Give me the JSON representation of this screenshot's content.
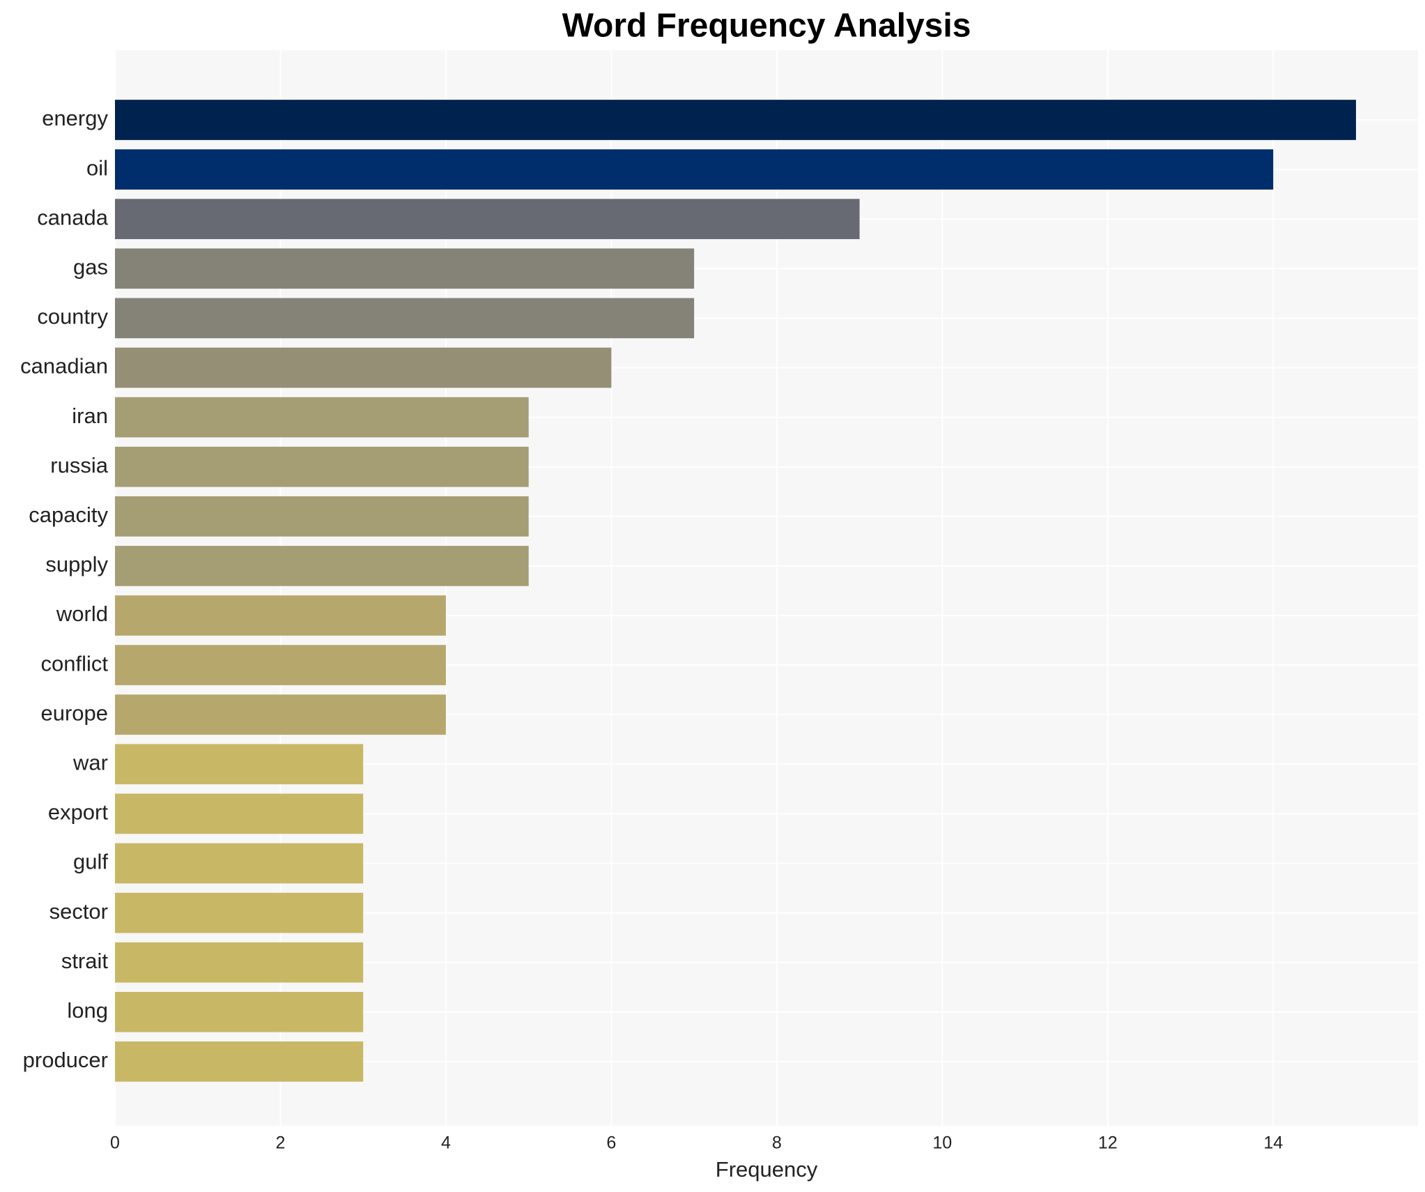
{
  "chart_data": {
    "type": "hbar",
    "title": "Word Frequency Analysis",
    "x_label": "Frequency",
    "categories": [
      "energy",
      "oil",
      "canada",
      "gas",
      "country",
      "canadian",
      "iran",
      "russia",
      "capacity",
      "supply",
      "world",
      "conflict",
      "europe",
      "war",
      "export",
      "gulf",
      "sector",
      "strait",
      "long",
      "producer"
    ],
    "values": [
      15,
      14,
      9,
      7,
      7,
      6,
      5,
      5,
      5,
      5,
      4,
      4,
      4,
      3,
      3,
      3,
      3,
      3,
      3,
      3
    ],
    "colors": [
      "#00224e",
      "#002d6b",
      "#676a72",
      "#858277",
      "#858277",
      "#958f76",
      "#a59d74",
      "#a59d74",
      "#a59d74",
      "#a59d74",
      "#b6a86d",
      "#b6a86d",
      "#b6a86d",
      "#c8b866",
      "#c8b866",
      "#c8b866",
      "#c8b866",
      "#c8b866",
      "#c8b866",
      "#c8b866"
    ],
    "xlim": [
      0,
      15.75
    ],
    "xticks": [
      0,
      2,
      4,
      6,
      8,
      10,
      12,
      14
    ],
    "grid": true
  }
}
